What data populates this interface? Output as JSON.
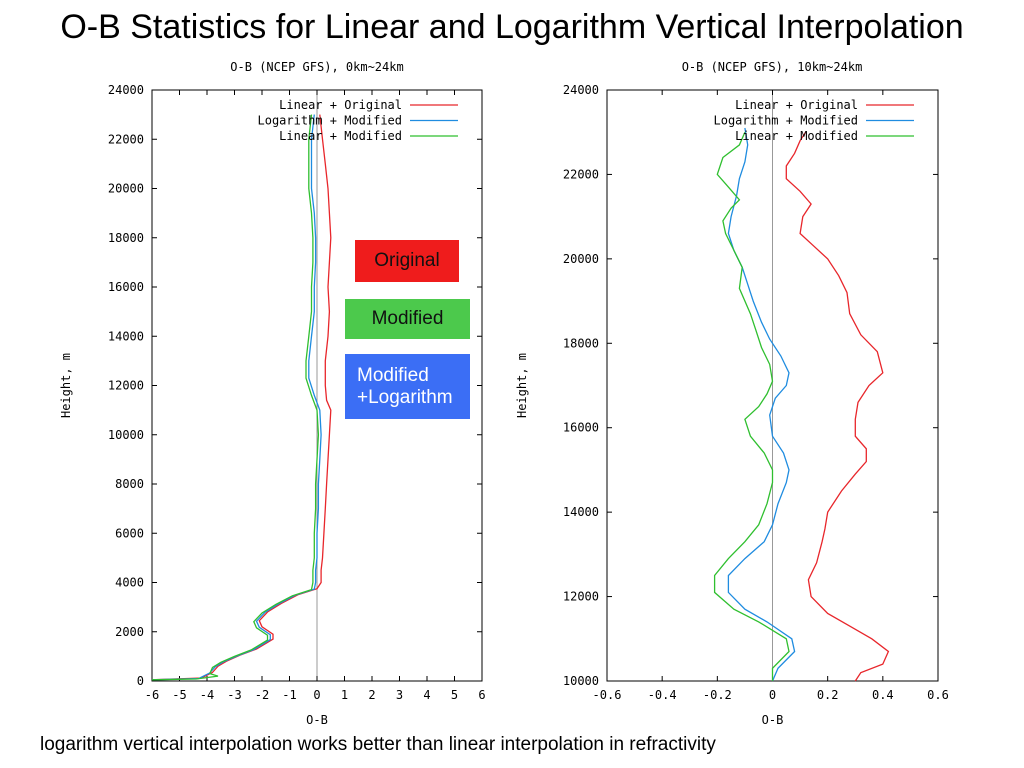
{
  "slide": {
    "title": "O-B Statistics for Linear and Logarithm Vertical Interpolation",
    "caption": "logarithm vertical interpolation works better than linear interpolation in refractivity",
    "badges": {
      "original": "Original",
      "modified": "Modified",
      "modified_log_line1": "Modified",
      "modified_log_line2": "+Logarithm"
    }
  },
  "colors": {
    "linear_original": "#e8262b",
    "logarithm_modified": "#1f8ce0",
    "linear_modified": "#2fbf2f",
    "zero_line": "#999999"
  },
  "chart_data": [
    {
      "type": "line",
      "title": "O-B (NCEP GFS), 0km~24km",
      "xlabel": "O-B",
      "ylabel": "Height, m",
      "xlim": [
        -6,
        6
      ],
      "ylim": [
        0,
        24000
      ],
      "xticks": [
        -6,
        -5,
        -4,
        -3,
        -2,
        -1,
        0,
        1,
        2,
        3,
        4,
        5,
        6
      ],
      "yticks": [
        0,
        2000,
        4000,
        6000,
        8000,
        10000,
        12000,
        14000,
        16000,
        18000,
        20000,
        22000,
        24000
      ],
      "grid": false,
      "legend_position": "top-right",
      "zero_line": 0,
      "series": [
        {
          "name": "Linear + Original",
          "color": "#e8262b",
          "points": [
            [
              -6,
              50
            ],
            [
              -4.2,
              120
            ],
            [
              -3.8,
              350
            ],
            [
              -3.6,
              600
            ],
            [
              -3.3,
              800
            ],
            [
              -2.8,
              1050
            ],
            [
              -2.2,
              1300
            ],
            [
              -1.6,
              1700
            ],
            [
              -1.6,
              1900
            ],
            [
              -2.0,
              2200
            ],
            [
              -2.1,
              2450
            ],
            [
              -1.8,
              2800
            ],
            [
              -1.3,
              3150
            ],
            [
              -0.7,
              3500
            ],
            [
              0.0,
              3750
            ],
            [
              0.15,
              4000
            ],
            [
              0.15,
              4500
            ],
            [
              0.2,
              5000
            ],
            [
              0.25,
              6000
            ],
            [
              0.3,
              7000
            ],
            [
              0.35,
              8000
            ],
            [
              0.4,
              9000
            ],
            [
              0.45,
              10000
            ],
            [
              0.5,
              11000
            ],
            [
              0.35,
              11400
            ],
            [
              0.3,
              12000
            ],
            [
              0.3,
              13000
            ],
            [
              0.4,
              14000
            ],
            [
              0.45,
              15000
            ],
            [
              0.4,
              16000
            ],
            [
              0.45,
              17000
            ],
            [
              0.5,
              18000
            ],
            [
              0.45,
              19000
            ],
            [
              0.4,
              20000
            ],
            [
              0.3,
              21000
            ],
            [
              0.2,
              22000
            ],
            [
              0.1,
              23000
            ]
          ]
        },
        {
          "name": "Logarithm + Modified",
          "color": "#1f8ce0",
          "points": [
            [
              -6,
              50
            ],
            [
              -4.3,
              100
            ],
            [
              -3.9,
              330
            ],
            [
              -3.7,
              580
            ],
            [
              -3.4,
              780
            ],
            [
              -2.9,
              1020
            ],
            [
              -2.3,
              1280
            ],
            [
              -1.7,
              1680
            ],
            [
              -1.7,
              1880
            ],
            [
              -2.1,
              2180
            ],
            [
              -2.2,
              2430
            ],
            [
              -1.9,
              2780
            ],
            [
              -1.4,
              3130
            ],
            [
              -0.8,
              3480
            ],
            [
              -0.1,
              3730
            ],
            [
              -0.05,
              4000
            ],
            [
              -0.05,
              4500
            ],
            [
              0.0,
              5000
            ],
            [
              0.0,
              6000
            ],
            [
              0.05,
              7000
            ],
            [
              0.05,
              8000
            ],
            [
              0.1,
              9000
            ],
            [
              0.15,
              10000
            ],
            [
              0.1,
              11000
            ],
            [
              -0.1,
              11600
            ],
            [
              -0.3,
              12300
            ],
            [
              -0.3,
              13000
            ],
            [
              -0.2,
              14000
            ],
            [
              -0.1,
              15000
            ],
            [
              -0.1,
              16000
            ],
            [
              -0.05,
              17000
            ],
            [
              -0.05,
              18000
            ],
            [
              -0.1,
              19000
            ],
            [
              -0.2,
              20000
            ],
            [
              -0.2,
              21000
            ],
            [
              -0.2,
              22000
            ],
            [
              -0.1,
              23000
            ]
          ]
        },
        {
          "name": "Linear + Modified",
          "color": "#2fbf2f",
          "points": [
            [
              -6,
              50
            ],
            [
              -4.4,
              80
            ],
            [
              -3.6,
              200
            ],
            [
              -3.9,
              300
            ],
            [
              -3.8,
              550
            ],
            [
              -3.5,
              760
            ],
            [
              -3.0,
              1000
            ],
            [
              -2.4,
              1260
            ],
            [
              -1.8,
              1660
            ],
            [
              -1.8,
              1860
            ],
            [
              -2.2,
              2160
            ],
            [
              -2.3,
              2410
            ],
            [
              -2.0,
              2760
            ],
            [
              -1.5,
              3110
            ],
            [
              -0.9,
              3460
            ],
            [
              -0.2,
              3710
            ],
            [
              -0.15,
              4000
            ],
            [
              -0.15,
              4500
            ],
            [
              -0.1,
              5000
            ],
            [
              -0.1,
              6000
            ],
            [
              -0.05,
              7000
            ],
            [
              -0.05,
              8000
            ],
            [
              0.0,
              9000
            ],
            [
              0.05,
              10000
            ],
            [
              0.0,
              11000
            ],
            [
              -0.2,
              11600
            ],
            [
              -0.4,
              12300
            ],
            [
              -0.4,
              13000
            ],
            [
              -0.3,
              14000
            ],
            [
              -0.2,
              15000
            ],
            [
              -0.2,
              16000
            ],
            [
              -0.15,
              17000
            ],
            [
              -0.15,
              18000
            ],
            [
              -0.2,
              19000
            ],
            [
              -0.3,
              20000
            ],
            [
              -0.3,
              21000
            ],
            [
              -0.3,
              22000
            ],
            [
              -0.2,
              23000
            ]
          ]
        }
      ]
    },
    {
      "type": "line",
      "title": "O-B (NCEP GFS), 10km~24km",
      "xlabel": "O-B",
      "ylabel": "Height, m",
      "xlim": [
        -0.6,
        0.6
      ],
      "ylim": [
        10000,
        24000
      ],
      "xticks": [
        -0.6,
        -0.4,
        -0.2,
        0,
        0.2,
        0.4,
        0.6
      ],
      "yticks": [
        10000,
        12000,
        14000,
        16000,
        18000,
        20000,
        22000,
        24000
      ],
      "grid": false,
      "legend_position": "top-right",
      "zero_line": 0,
      "series": [
        {
          "name": "Linear + Original",
          "color": "#e8262b",
          "points": [
            [
              0.3,
              10000
            ],
            [
              0.32,
              10200
            ],
            [
              0.4,
              10400
            ],
            [
              0.42,
              10700
            ],
            [
              0.36,
              11000
            ],
            [
              0.28,
              11300
            ],
            [
              0.2,
              11600
            ],
            [
              0.14,
              12000
            ],
            [
              0.13,
              12400
            ],
            [
              0.16,
              12800
            ],
            [
              0.18,
              13300
            ],
            [
              0.19,
              13600
            ],
            [
              0.2,
              14000
            ],
            [
              0.25,
              14500
            ],
            [
              0.3,
              14900
            ],
            [
              0.34,
              15200
            ],
            [
              0.34,
              15500
            ],
            [
              0.3,
              15800
            ],
            [
              0.3,
              16200
            ],
            [
              0.31,
              16600
            ],
            [
              0.35,
              17000
            ],
            [
              0.4,
              17300
            ],
            [
              0.38,
              17800
            ],
            [
              0.32,
              18200
            ],
            [
              0.28,
              18700
            ],
            [
              0.27,
              19200
            ],
            [
              0.24,
              19600
            ],
            [
              0.2,
              20000
            ],
            [
              0.15,
              20300
            ],
            [
              0.1,
              20600
            ],
            [
              0.11,
              21000
            ],
            [
              0.14,
              21300
            ],
            [
              0.1,
              21600
            ],
            [
              0.05,
              21900
            ],
            [
              0.05,
              22200
            ],
            [
              0.08,
              22500
            ],
            [
              0.1,
              22800
            ],
            [
              0.12,
              23000
            ]
          ]
        },
        {
          "name": "Logarithm + Modified",
          "color": "#1f8ce0",
          "points": [
            [
              0.0,
              10000
            ],
            [
              0.02,
              10300
            ],
            [
              0.08,
              10700
            ],
            [
              0.07,
              11000
            ],
            [
              -0.02,
              11400
            ],
            [
              -0.1,
              11700
            ],
            [
              -0.16,
              12100
            ],
            [
              -0.16,
              12500
            ],
            [
              -0.1,
              12900
            ],
            [
              -0.03,
              13300
            ],
            [
              0.0,
              13700
            ],
            [
              0.02,
              14200
            ],
            [
              0.05,
              14700
            ],
            [
              0.06,
              15000
            ],
            [
              0.04,
              15400
            ],
            [
              0.0,
              15800
            ],
            [
              -0.01,
              16300
            ],
            [
              0.01,
              16700
            ],
            [
              0.05,
              17000
            ],
            [
              0.06,
              17300
            ],
            [
              0.03,
              17700
            ],
            [
              -0.01,
              18100
            ],
            [
              -0.04,
              18500
            ],
            [
              -0.07,
              19000
            ],
            [
              -0.09,
              19400
            ],
            [
              -0.11,
              19800
            ],
            [
              -0.14,
              20200
            ],
            [
              -0.16,
              20600
            ],
            [
              -0.15,
              21000
            ],
            [
              -0.13,
              21500
            ],
            [
              -0.12,
              21900
            ],
            [
              -0.1,
              22300
            ],
            [
              -0.09,
              22700
            ],
            [
              -0.1,
              23100
            ]
          ]
        },
        {
          "name": "Linear + Modified",
          "color": "#2fbf2f",
          "points": [
            [
              0.0,
              10000
            ],
            [
              0.0,
              10300
            ],
            [
              0.06,
              10700
            ],
            [
              0.05,
              11000
            ],
            [
              -0.05,
              11400
            ],
            [
              -0.14,
              11700
            ],
            [
              -0.21,
              12100
            ],
            [
              -0.21,
              12500
            ],
            [
              -0.16,
              12900
            ],
            [
              -0.1,
              13300
            ],
            [
              -0.05,
              13700
            ],
            [
              -0.02,
              14200
            ],
            [
              0.0,
              14700
            ],
            [
              0.0,
              15000
            ],
            [
              -0.03,
              15400
            ],
            [
              -0.08,
              15800
            ],
            [
              -0.1,
              16200
            ],
            [
              -0.05,
              16500
            ],
            [
              -0.02,
              16800
            ],
            [
              0.0,
              17100
            ],
            [
              -0.01,
              17500
            ],
            [
              -0.04,
              17900
            ],
            [
              -0.06,
              18300
            ],
            [
              -0.08,
              18700
            ],
            [
              -0.12,
              19300
            ],
            [
              -0.11,
              19800
            ],
            [
              -0.14,
              20200
            ],
            [
              -0.17,
              20600
            ],
            [
              -0.18,
              20900
            ],
            [
              -0.15,
              21200
            ],
            [
              -0.12,
              21400
            ],
            [
              -0.16,
              21700
            ],
            [
              -0.2,
              22000
            ],
            [
              -0.18,
              22400
            ],
            [
              -0.12,
              22700
            ],
            [
              -0.1,
              23000
            ]
          ]
        }
      ]
    }
  ]
}
